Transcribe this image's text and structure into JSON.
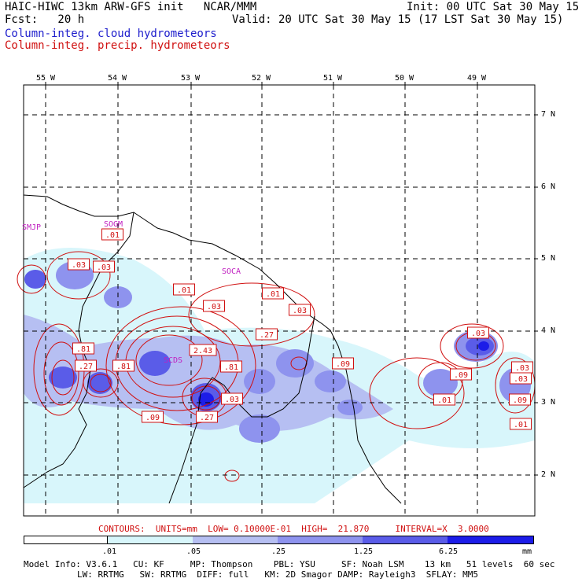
{
  "header": {
    "left_line1": "HAIC-HIWC 13km ARW-GFS init   NCAR/MMM",
    "left_line2": "Fcst:   20 h",
    "right_line1": "Init: 00 UTC Sat 30 May 15",
    "right_line2": "Valid: 20 UTC Sat 30 May 15 (17 LST Sat 30 May 15)",
    "legend_cloud": "Column-integ. cloud hydrometeors",
    "legend_precip": "Column-integ. precip. hydrometeors"
  },
  "colors": {
    "cloud_legend": "#1c1ccc",
    "precip_legend": "#d01010",
    "fill_levels": [
      "#d8f6fb",
      "#b6bff2",
      "#8e93ee",
      "#5a5ce8",
      "#1c1ce8"
    ]
  },
  "axes": {
    "longitude_labels": [
      "55 W",
      "54 W",
      "53 W",
      "52 W",
      "51 W",
      "50 W",
      "49 W"
    ],
    "latitude_labels": [
      "7 N",
      "6 N",
      "5 N",
      "4 N",
      "3 N",
      "2 N"
    ]
  },
  "stations": [
    "SMJP",
    "SOCA",
    "SOGM",
    "SCDS"
  ],
  "contour_labels": [
    ".01",
    ".03",
    ".03",
    ".01",
    ".03",
    ".01",
    ".03",
    ".27",
    ".81",
    ".27",
    ".81",
    "2.43",
    ".81",
    ".09",
    ".27",
    ".03",
    ".09",
    ".03",
    ".09",
    ".01",
    ".03",
    ".03",
    ".09",
    ".01"
  ],
  "footer": {
    "contours_info": "CONTOURS:  UNITS=mm  LOW= 0.10000E-01  HIGH=  21.870     INTERVAL=X  3.0000",
    "colorbar_ticks": [
      ".01",
      ".05",
      ".25",
      "1.25",
      "6.25",
      "mm"
    ],
    "model_line1": "Model Info: V3.6.1   CU: KF     MP: Thompson    PBL: YSU     SF: Noah LSM    13 km   51 levels  60 sec",
    "model_line2": "LW: RRTMG   SW: RRTMG  DIFF: full   KM: 2D Smagor DAMP: Rayleigh3  SFLAY: MM5"
  }
}
